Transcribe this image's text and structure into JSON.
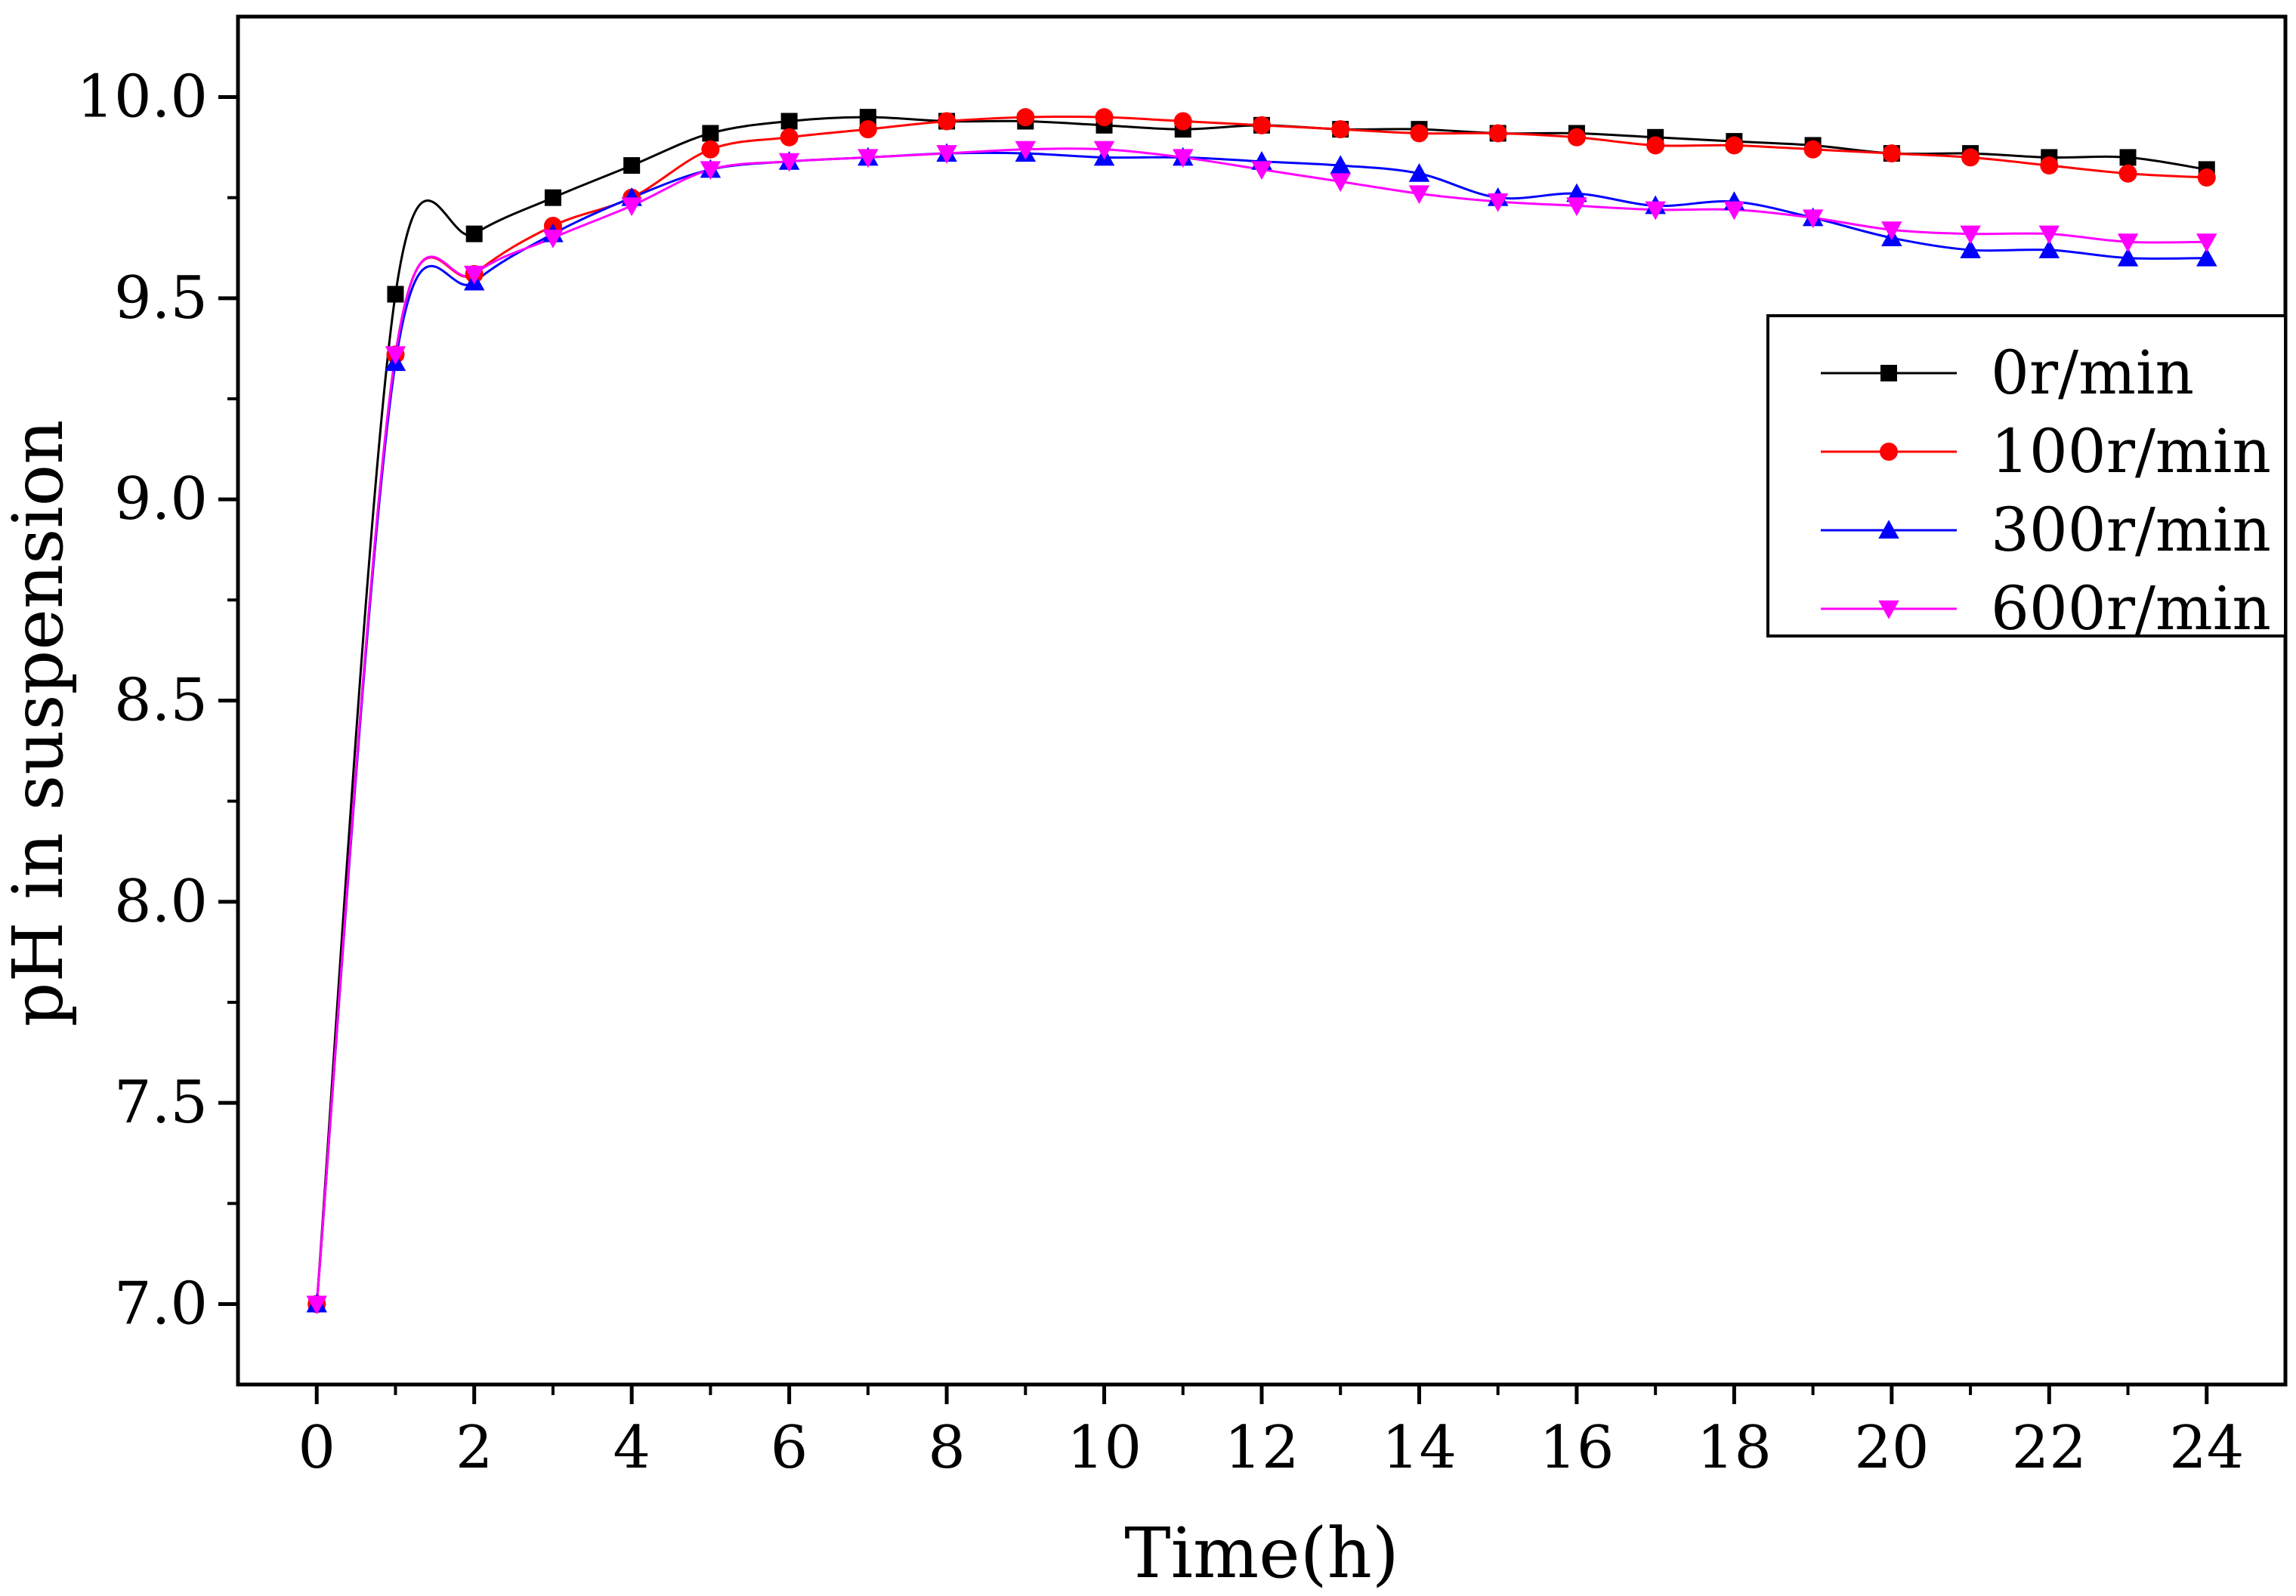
{
  "chart_data": {
    "type": "line",
    "title": "",
    "xlabel": "Time(h)",
    "ylabel": "pH in suspension",
    "xlim": [
      -1,
      25.0
    ],
    "ylim": [
      6.8,
      10.2
    ],
    "xticks": [
      0,
      2,
      4,
      6,
      8,
      10,
      12,
      14,
      16,
      18,
      20,
      22,
      24
    ],
    "xtick_labels": [
      "0",
      "2",
      "4",
      "6",
      "8",
      "10",
      "12",
      "14",
      "16",
      "18",
      "20",
      "22",
      "24"
    ],
    "yticks": [
      7.0,
      7.5,
      8.0,
      8.5,
      9.0,
      9.5,
      10.0
    ],
    "ytick_labels": [
      "7.0",
      "7.5",
      "8.0",
      "8.5",
      "9.0",
      "9.5",
      "10.0"
    ],
    "grid": false,
    "legend_position": "upper-right",
    "x": [
      0,
      1,
      2,
      3,
      4,
      5,
      6,
      7,
      8,
      9,
      10,
      11,
      12,
      13,
      14,
      15,
      16,
      17,
      18,
      19,
      20,
      21,
      22,
      23,
      24
    ],
    "series": [
      {
        "name": "0r/min",
        "color": "#000000",
        "marker": "square",
        "values": [
          7.0,
          9.51,
          9.66,
          9.75,
          9.83,
          9.91,
          9.94,
          9.95,
          9.94,
          9.94,
          9.93,
          9.92,
          9.93,
          9.92,
          9.92,
          9.91,
          9.91,
          9.9,
          9.89,
          9.88,
          9.86,
          9.86,
          9.85,
          9.85,
          9.82
        ]
      },
      {
        "name": "100r/min",
        "color": "#ff0000",
        "marker": "circle",
        "values": [
          7.0,
          9.36,
          9.56,
          9.68,
          9.75,
          9.87,
          9.9,
          9.92,
          9.94,
          9.95,
          9.95,
          9.94,
          9.93,
          9.92,
          9.91,
          9.91,
          9.9,
          9.88,
          9.88,
          9.87,
          9.86,
          9.85,
          9.83,
          9.81,
          9.8
        ]
      },
      {
        "name": "300r/min",
        "color": "#0000ff",
        "marker": "triangle-up",
        "values": [
          7.0,
          9.34,
          9.54,
          9.66,
          9.75,
          9.82,
          9.84,
          9.85,
          9.86,
          9.86,
          9.85,
          9.85,
          9.84,
          9.83,
          9.81,
          9.75,
          9.76,
          9.73,
          9.74,
          9.7,
          9.65,
          9.62,
          9.62,
          9.6,
          9.6
        ]
      },
      {
        "name": "600r/min",
        "color": "#ff00ff",
        "marker": "triangle-down",
        "values": [
          7.0,
          9.36,
          9.56,
          9.65,
          9.73,
          9.82,
          9.84,
          9.85,
          9.86,
          9.87,
          9.87,
          9.85,
          9.82,
          9.79,
          9.76,
          9.74,
          9.73,
          9.72,
          9.72,
          9.7,
          9.67,
          9.66,
          9.66,
          9.64,
          9.64
        ]
      }
    ]
  }
}
